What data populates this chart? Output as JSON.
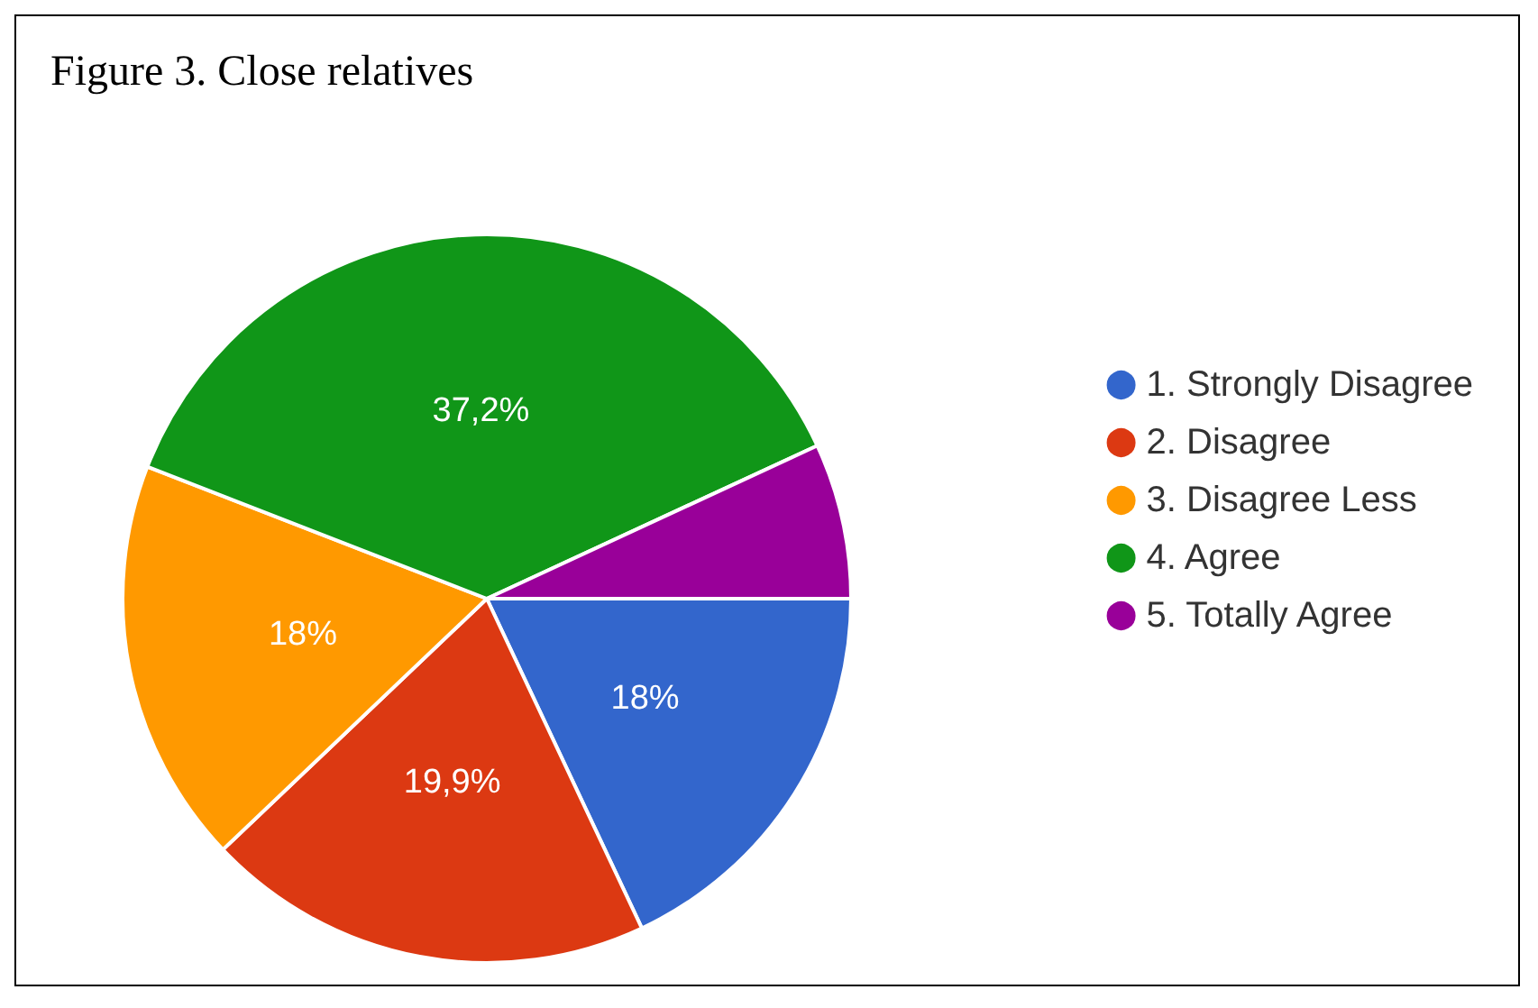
{
  "chart_data": {
    "type": "pie",
    "title": "Figure 3. Close relatives",
    "categories": [
      "1. Strongly Disagree",
      "2. Disagree",
      "3. Disagree Less",
      "4. Agree",
      "5. Totally Agree"
    ],
    "values": [
      18,
      19.9,
      18,
      37.2,
      6.9
    ],
    "colors": [
      "#3366cc",
      "#dc3912",
      "#ff9900",
      "#109618",
      "#990099"
    ],
    "value_labels": [
      "18%",
      "19,9%",
      "18%",
      "37,2%",
      null
    ],
    "legend": "right"
  }
}
